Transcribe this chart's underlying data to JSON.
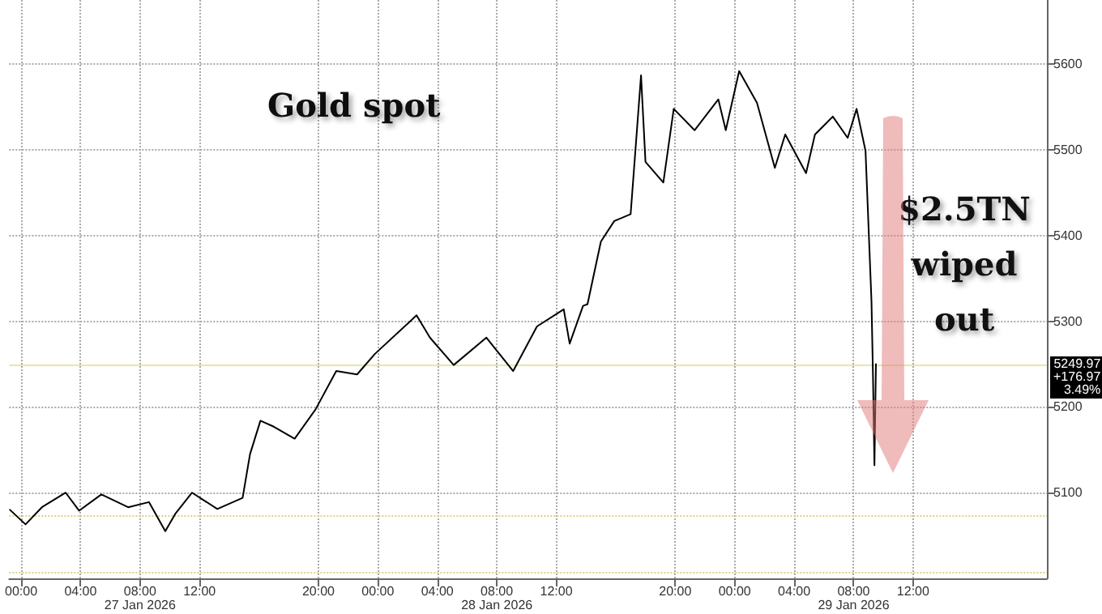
{
  "chart_data": {
    "type": "line",
    "title": "Gold spot",
    "x": [
      "2026-01-26T23:15",
      "2026-01-27T00:18",
      "2026-01-27T01:24",
      "2026-01-27T03:00",
      "2026-01-27T03:54",
      "2026-01-27T05:24",
      "2026-01-27T07:12",
      "2026-01-27T08:36",
      "2026-01-27T09:42",
      "2026-01-27T10:24",
      "2026-01-27T11:30",
      "2026-01-27T13:12",
      "2026-01-27T14:54",
      "2026-01-27T15:24",
      "2026-01-27T16:06",
      "2026-01-27T17:00",
      "2026-01-27T18:24",
      "2026-01-27T19:48",
      "2026-01-27T21:12",
      "2026-01-27T22:36",
      "2026-01-27T23:48",
      "2026-01-28T02:36",
      "2026-01-28T03:30",
      "2026-01-28T05:06",
      "2026-01-28T07:18",
      "2026-01-28T09:06",
      "2026-01-28T10:42",
      "2026-01-28T12:30",
      "2026-01-28T12:54",
      "2026-01-28T13:48",
      "2026-01-28T14:06",
      "2026-01-28T15:00",
      "2026-01-28T15:54",
      "2026-01-28T17:00",
      "2026-01-28T17:42",
      "2026-01-28T18:00",
      "2026-01-28T19:12",
      "2026-01-28T19:54",
      "2026-01-28T21:18",
      "2026-01-28T22:54",
      "2026-01-28T23:24",
      "2026-01-29T00:18",
      "2026-01-29T01:30",
      "2026-01-29T02:42",
      "2026-01-29T03:24",
      "2026-01-29T04:48",
      "2026-01-29T05:24",
      "2026-01-29T06:36",
      "2026-01-29T07:36",
      "2026-01-29T08:12",
      "2026-01-29T08:48",
      "2026-01-29T09:12",
      "2026-01-29T09:18",
      "2026-01-29T09:24",
      "2026-01-29T09:30"
    ],
    "series": [
      {
        "color": "#000000",
        "values": [
          5080,
          5063,
          5083,
          5100,
          5079,
          5098,
          5083,
          5089,
          5055,
          5076,
          5100,
          5081,
          5094,
          5145,
          5184,
          5177,
          5163,
          5197,
          5242,
          5238,
          5262,
          5307,
          5281,
          5249,
          5281,
          5242,
          5294,
          5314,
          5274,
          5318,
          5320,
          5393,
          5417,
          5425,
          5587,
          5486,
          5462,
          5548,
          5523,
          5559,
          5523,
          5592,
          5555,
          5479,
          5518,
          5473,
          5518,
          5539,
          5514,
          5548,
          5499,
          5324,
          5238,
          5132,
          5249.97
        ]
      }
    ],
    "xlim": [
      "2026-01-26T23:12",
      "2026-01-29T21:00"
    ],
    "xticks": [
      {
        "value": "2026-01-27T00:00",
        "label": "00:00"
      },
      {
        "value": "2026-01-27T04:00",
        "label": "04:00"
      },
      {
        "value": "2026-01-27T08:00",
        "label": "08:00"
      },
      {
        "value": "2026-01-27T12:00",
        "label": "12:00"
      },
      {
        "value": "2026-01-27T20:00",
        "label": "20:00"
      },
      {
        "value": "2026-01-28T00:00",
        "label": "00:00"
      },
      {
        "value": "2026-01-28T04:00",
        "label": "04:00"
      },
      {
        "value": "2026-01-28T08:00",
        "label": "08:00"
      },
      {
        "value": "2026-01-28T12:00",
        "label": "12:00"
      },
      {
        "value": "2026-01-28T20:00",
        "label": "20:00"
      },
      {
        "value": "2026-01-29T00:00",
        "label": "00:00"
      },
      {
        "value": "2026-01-29T04:00",
        "label": "04:00"
      },
      {
        "value": "2026-01-29T08:00",
        "label": "08:00"
      },
      {
        "value": "2026-01-29T12:00",
        "label": "12:00"
      }
    ],
    "ylim": [
      5000,
      5675
    ],
    "yticks": [
      5100,
      5200,
      5300,
      5400,
      5500,
      5600
    ],
    "grid": true,
    "line_style": "solid",
    "marker": "none",
    "ref_lines": [
      {
        "axis": "y",
        "value": 5249.97,
        "label": "5249.97\n+176.97\n3.49%",
        "color": "#e8e8a0",
        "line_style": "solid"
      },
      {
        "axis": "y",
        "value": 5074,
        "color": "#e0d080",
        "line_style": "dotted"
      },
      {
        "axis": "y",
        "value": 5007,
        "color": "#e0d080",
        "line_style": "dotted"
      }
    ],
    "annotations": [
      "$2.5TN wiped out",
      "27 Jan 2026",
      "28 Jan 2026",
      "29 Jan 2026"
    ]
  }
}
